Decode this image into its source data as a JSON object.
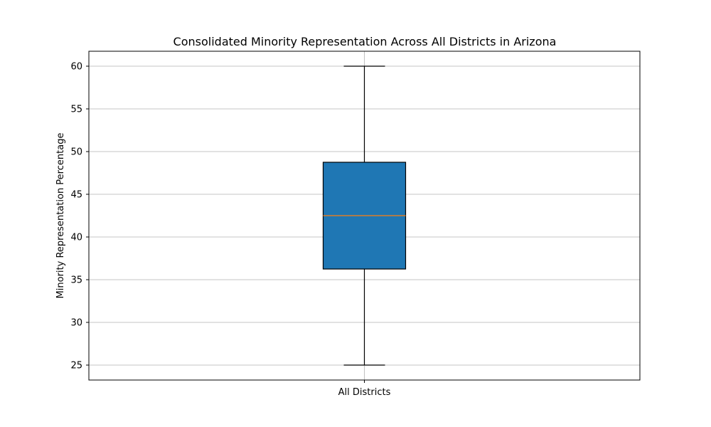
{
  "chart_data": {
    "type": "box",
    "title": "Consolidated Minority Representation Across All Districts in Arizona",
    "xlabel": "",
    "ylabel": "Minority Representation Percentage",
    "categories": [
      "All Districts"
    ],
    "ylim": [
      23.25,
      61.75
    ],
    "yticks": [
      25,
      30,
      35,
      40,
      45,
      50,
      55,
      60
    ],
    "grid": true,
    "boxes": [
      {
        "category": "All Districts",
        "whisker_low": 25,
        "q1": 36.25,
        "median": 42.5,
        "q3": 48.75,
        "whisker_high": 60
      }
    ],
    "colors": {
      "box_fill": "#1f77b4",
      "median": "#ff7f0e",
      "grid": "#b0b0b0",
      "edge": "#000000"
    }
  }
}
